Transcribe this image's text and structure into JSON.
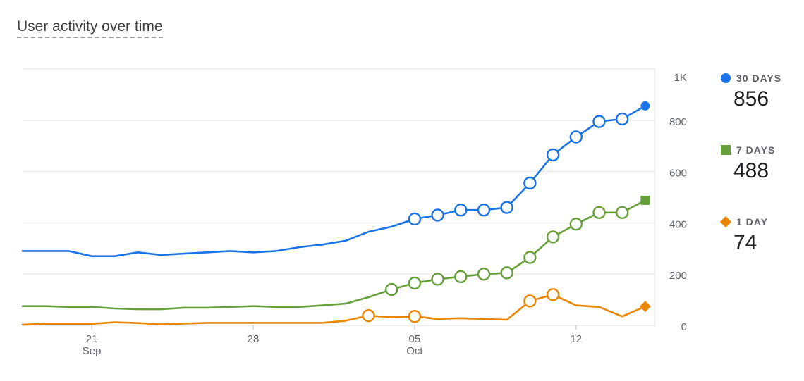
{
  "title": "User activity over time",
  "colors": {
    "grid": "#e8eaed",
    "axis_text": "#5f6368"
  },
  "chart_data": {
    "type": "line",
    "title": "User activity over time",
    "x_ticks": [
      {
        "day": 3,
        "label": "21",
        "sublabel": "Sep"
      },
      {
        "day": 10,
        "label": "28",
        "sublabel": ""
      },
      {
        "day": 17,
        "label": "05",
        "sublabel": "Oct"
      },
      {
        "day": 24,
        "label": "12",
        "sublabel": ""
      }
    ],
    "x_range": [
      0,
      27.7
    ],
    "y_ticks": [
      {
        "value": 0,
        "label": "0"
      },
      {
        "value": 200,
        "label": "200"
      },
      {
        "value": 400,
        "label": "400"
      },
      {
        "value": 600,
        "label": "600"
      },
      {
        "value": 800,
        "label": "800"
      },
      {
        "value": 1000,
        "label": "1K"
      }
    ],
    "ylim": [
      0,
      1000
    ],
    "grid": true,
    "legend_position": "right",
    "series": [
      {
        "name": "30 DAYS",
        "value": "856",
        "color": "#1a73e8",
        "marker": "circle",
        "values": [
          290,
          290,
          290,
          270,
          270,
          285,
          275,
          280,
          285,
          290,
          285,
          290,
          305,
          315,
          330,
          365,
          385,
          415,
          430,
          450,
          450,
          460,
          555,
          665,
          735,
          795,
          805,
          856
        ],
        "hollow_points": [
          17,
          18,
          19,
          20,
          21,
          22,
          23,
          24,
          25,
          26
        ]
      },
      {
        "name": "7 DAYS",
        "value": "488",
        "color": "#67a03b",
        "marker": "square",
        "values": [
          75,
          75,
          72,
          72,
          66,
          63,
          63,
          69,
          69,
          72,
          75,
          72,
          72,
          78,
          85,
          110,
          140,
          165,
          180,
          190,
          200,
          205,
          265,
          345,
          395,
          440,
          440,
          488
        ],
        "hollow_points": [
          16,
          17,
          18,
          19,
          20,
          21,
          22,
          23,
          24,
          25,
          26
        ]
      },
      {
        "name": "1 DAY",
        "value": "74",
        "color": "#ea8600",
        "marker": "diamond",
        "values": [
          3,
          6,
          6,
          6,
          12,
          9,
          4,
          7,
          10,
          10,
          10,
          10,
          10,
          10,
          18,
          38,
          32,
          35,
          25,
          28,
          25,
          22,
          95,
          120,
          78,
          72,
          35,
          74
        ],
        "hollow_points": [
          15,
          17,
          22,
          23
        ]
      }
    ]
  }
}
